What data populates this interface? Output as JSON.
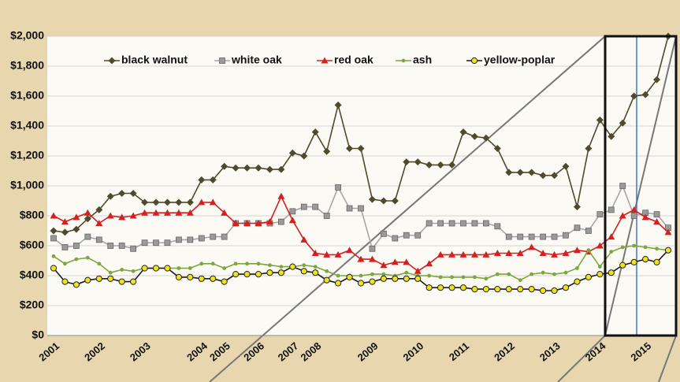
{
  "chart_data": {
    "type": "line",
    "categories": [
      "2001",
      null,
      null,
      null,
      "2002",
      null,
      null,
      null,
      "2003",
      null,
      null,
      null,
      null,
      "2004",
      null,
      "2005",
      null,
      null,
      "2006",
      null,
      null,
      "2007",
      null,
      "2008",
      null,
      null,
      null,
      null,
      "2009",
      null,
      null,
      null,
      "2010",
      null,
      null,
      null,
      "2011",
      null,
      null,
      null,
      "2012",
      null,
      null,
      null,
      "2013",
      null,
      null,
      null,
      "2014",
      null,
      null,
      null,
      "2015",
      null,
      null
    ],
    "series": [
      {
        "name": "black walnut",
        "color": "#4f4a2c",
        "marker_color": "#4f4a2c",
        "marker": "diamond",
        "values": [
          700,
          690,
          710,
          780,
          840,
          930,
          950,
          950,
          890,
          890,
          890,
          890,
          890,
          1040,
          1040,
          1130,
          1120,
          1120,
          1120,
          1110,
          1110,
          1220,
          1200,
          1360,
          1230,
          1540,
          1250,
          1250,
          910,
          900,
          900,
          1160,
          1160,
          1140,
          1140,
          1140,
          1360,
          1330,
          1320,
          1250,
          1090,
          1090,
          1090,
          1070,
          1070,
          1130,
          860,
          1250,
          1440,
          1330,
          1420,
          1600,
          1610,
          1710,
          2000
        ]
      },
      {
        "name": "white oak",
        "color": "#a6a6a6",
        "marker_color": "#9a9a9a",
        "marker": "square",
        "values": [
          650,
          590,
          600,
          660,
          640,
          600,
          600,
          580,
          620,
          620,
          620,
          640,
          640,
          650,
          660,
          660,
          750,
          750,
          750,
          750,
          760,
          830,
          860,
          860,
          800,
          990,
          850,
          850,
          580,
          680,
          650,
          670,
          670,
          750,
          750,
          750,
          750,
          750,
          750,
          730,
          660,
          660,
          660,
          660,
          660,
          670,
          720,
          700,
          810,
          840,
          1000,
          800,
          820,
          810,
          720
        ]
      },
      {
        "name": "red oak",
        "color": "#d42020",
        "marker_color": "#d42020",
        "marker": "triangle",
        "values": [
          800,
          760,
          790,
          820,
          750,
          800,
          790,
          800,
          820,
          820,
          820,
          820,
          820,
          890,
          890,
          820,
          750,
          750,
          750,
          760,
          930,
          770,
          640,
          550,
          540,
          540,
          570,
          510,
          510,
          470,
          490,
          490,
          430,
          480,
          540,
          540,
          540,
          540,
          540,
          550,
          550,
          550,
          590,
          550,
          540,
          550,
          570,
          560,
          600,
          660,
          800,
          840,
          790,
          760,
          690
        ]
      },
      {
        "name": "ash",
        "color": "#7aa83c",
        "marker_color": "#7aa83c",
        "marker": "dot",
        "values": [
          530,
          480,
          510,
          520,
          480,
          420,
          440,
          430,
          450,
          450,
          450,
          450,
          450,
          480,
          480,
          450,
          480,
          480,
          480,
          470,
          460,
          460,
          470,
          460,
          430,
          400,
          400,
          400,
          410,
          410,
          400,
          420,
          400,
          400,
          390,
          390,
          390,
          390,
          380,
          410,
          410,
          370,
          410,
          420,
          410,
          420,
          450,
          570,
          460,
          560,
          590,
          600,
          590,
          580,
          570
        ]
      },
      {
        "name": "yellow-poplar",
        "color": "#1a1a1a",
        "marker_color": "#f2e21a",
        "marker": "circle",
        "values": [
          450,
          360,
          340,
          370,
          380,
          380,
          360,
          360,
          450,
          450,
          450,
          390,
          390,
          380,
          380,
          360,
          410,
          410,
          410,
          420,
          420,
          460,
          430,
          420,
          370,
          350,
          390,
          350,
          360,
          380,
          380,
          380,
          380,
          320,
          320,
          320,
          320,
          310,
          310,
          310,
          310,
          310,
          310,
          300,
          300,
          320,
          360,
          390,
          410,
          420,
          470,
          490,
          510,
          490,
          570
        ]
      }
    ],
    "ylim": [
      0,
      2000
    ],
    "yticks": [
      {
        "value": 0,
        "label": "$0"
      },
      {
        "value": 200,
        "label": "$200"
      },
      {
        "value": 400,
        "label": "$400"
      },
      {
        "value": 600,
        "label": "$600"
      },
      {
        "value": 800,
        "label": "$800"
      },
      {
        "value": 1000,
        "label": "$1,000"
      },
      {
        "value": 1200,
        "label": "$1,200"
      },
      {
        "value": 1400,
        "label": "$1,400"
      },
      {
        "value": 1600,
        "label": "$1,600"
      },
      {
        "value": 1800,
        "label": "$1,800"
      },
      {
        "value": 2000,
        "label": "$2,000"
      }
    ],
    "grid": true,
    "legend": "top-left"
  }
}
